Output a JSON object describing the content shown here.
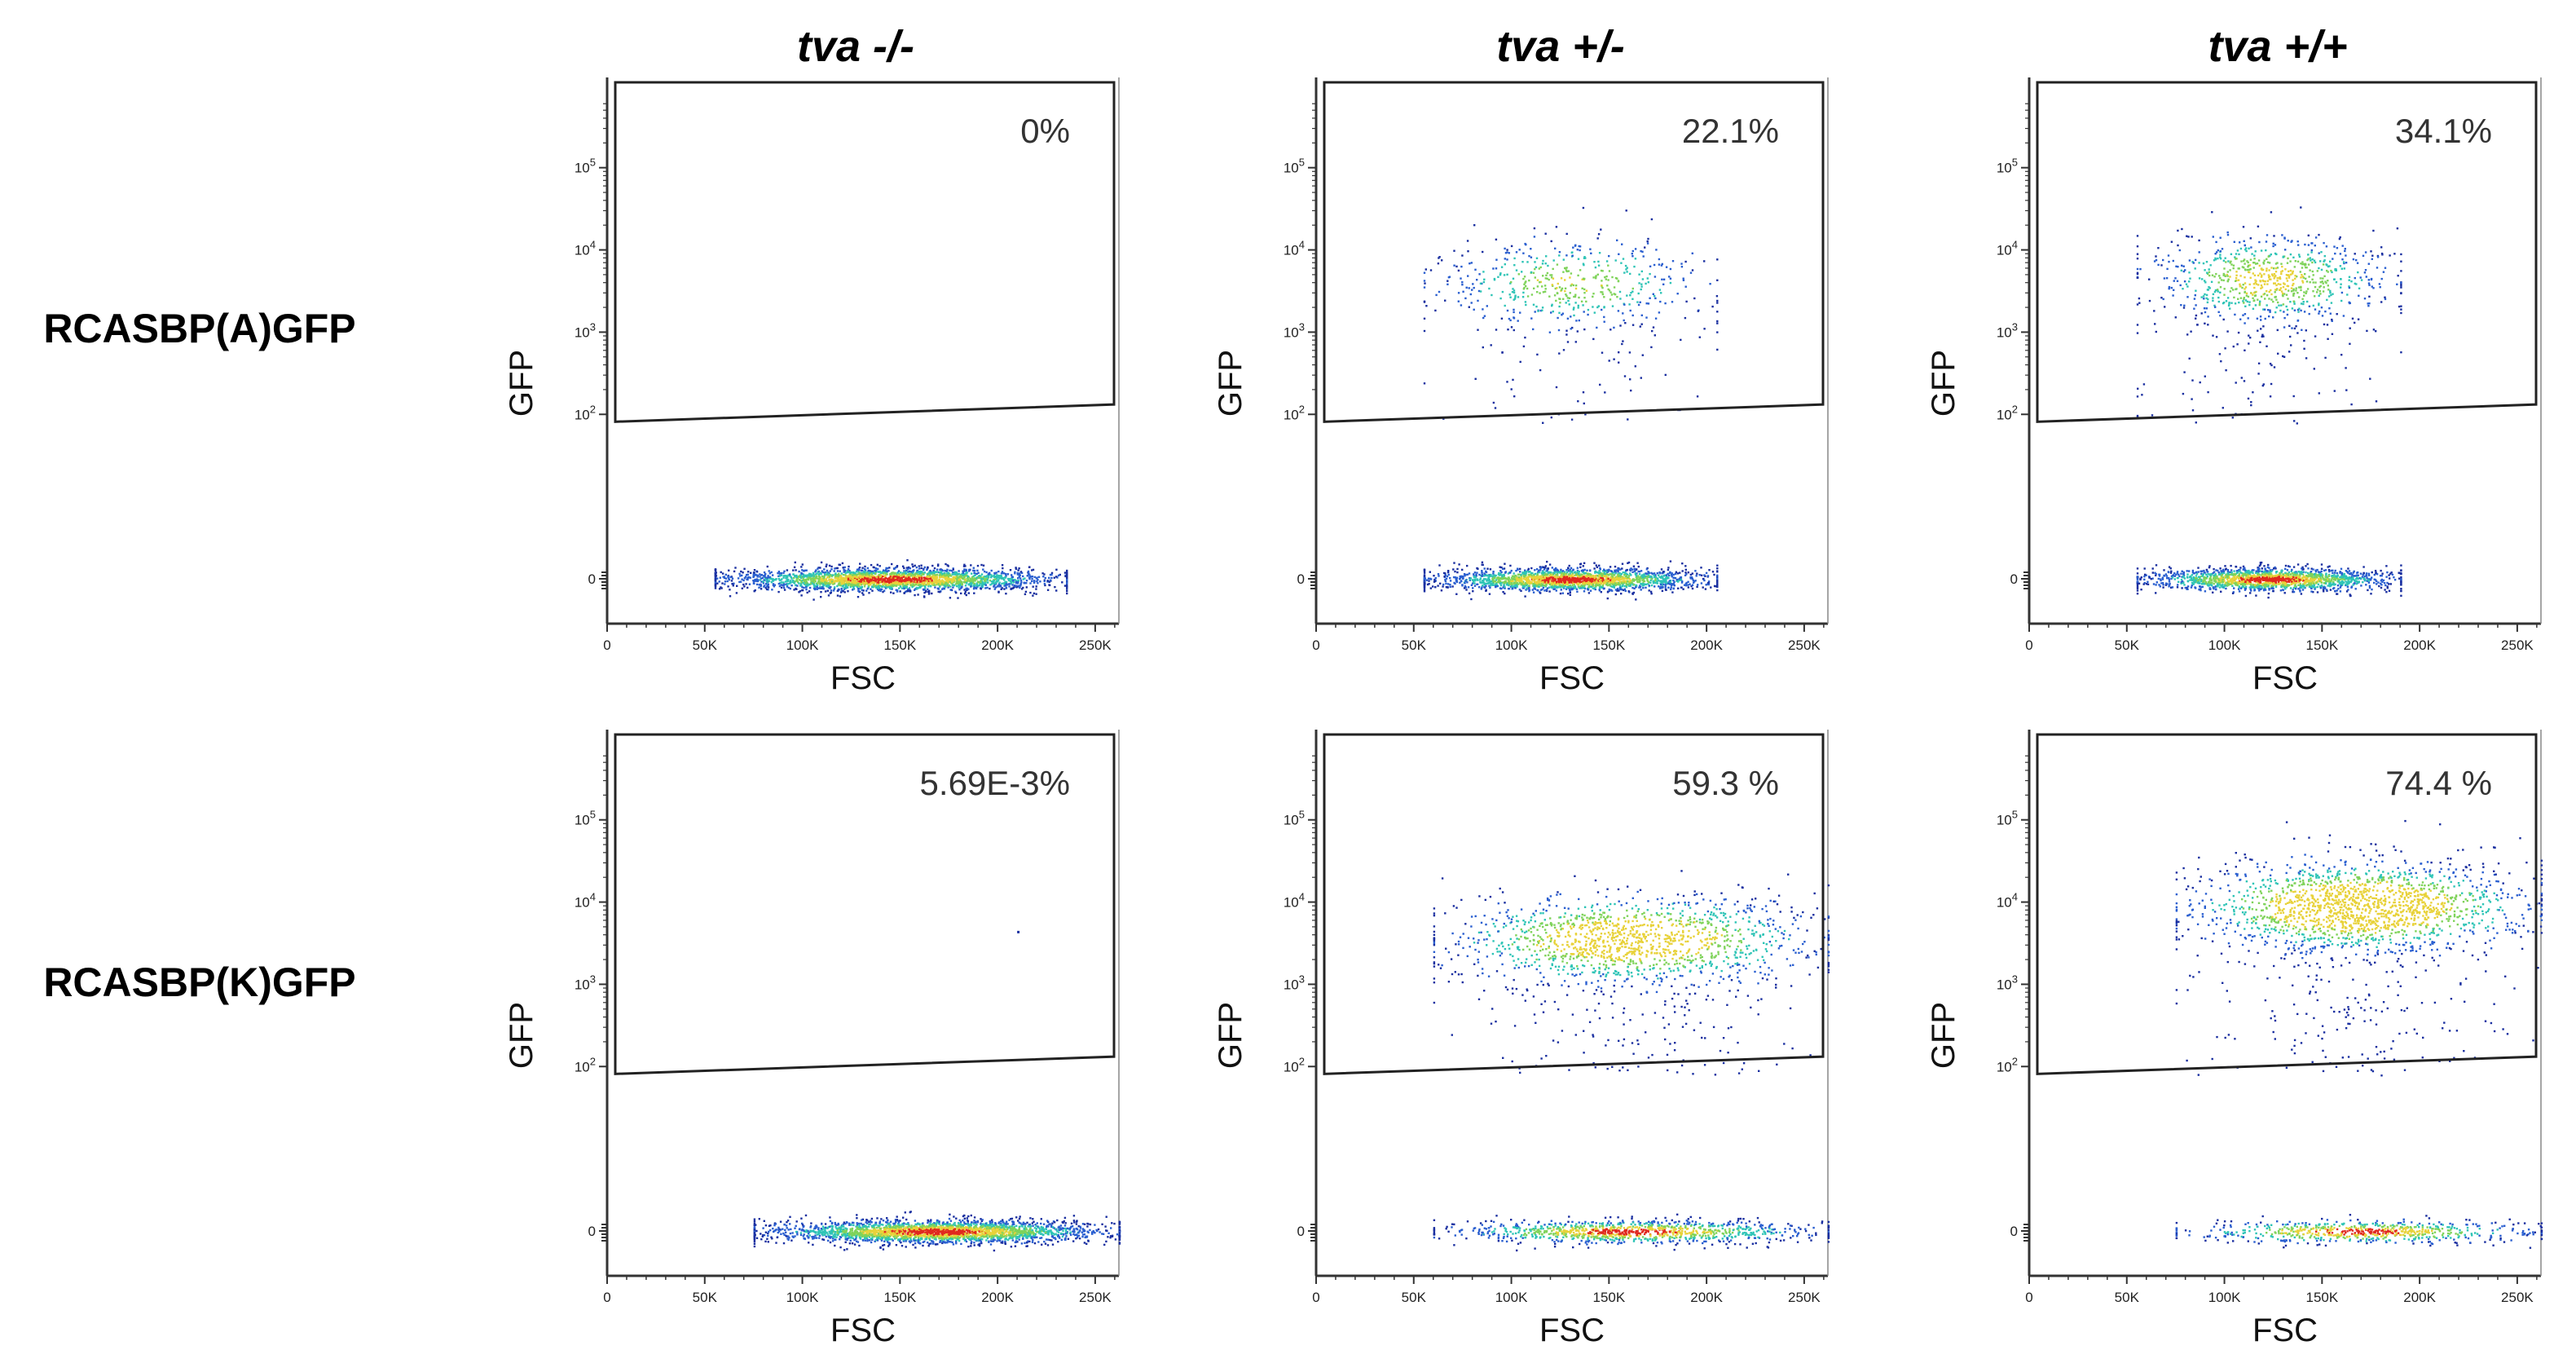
{
  "column_titles": [
    "tva -/-",
    "tva +/-",
    "tva +/+"
  ],
  "row_labels": [
    "RCASBP(A)GFP",
    "RCASBP(K)GFP"
  ],
  "colors": {
    "density_low": "#1a2fa0",
    "density_mid": "#2ec4b6",
    "density_high": "#e8d23a",
    "density_peak": "#e0281e",
    "axis": "#333333",
    "gate": "#222222"
  },
  "chart_data": [
    {
      "type": "scatter",
      "row": "RCASBP(A)GFP",
      "column": "tva -/-",
      "gate_percent": "0%",
      "xlabel": "FSC",
      "ylabel": "GFP",
      "x_ticks": [
        "0",
        "50K",
        "100K",
        "150K",
        "200K",
        "250K"
      ],
      "y_ticks": [
        "0",
        "10^2",
        "10^3",
        "10^4",
        "10^5"
      ],
      "xlim": [
        0,
        262144
      ],
      "ylim_log": [
        0,
        5.8
      ],
      "populations": [
        {
          "name": "GFP-negative",
          "x_range": [
            55000,
            235000
          ],
          "y_center_log": 0.0,
          "relative_count": 1.0
        }
      ],
      "sparse_events": []
    },
    {
      "type": "scatter",
      "row": "RCASBP(A)GFP",
      "column": "tva +/-",
      "gate_percent": "22.1%",
      "xlabel": "FSC",
      "ylabel": "GFP",
      "x_ticks": [
        "0",
        "50K",
        "100K",
        "150K",
        "200K",
        "250K"
      ],
      "y_ticks": [
        "0",
        "10^2",
        "10^3",
        "10^4",
        "10^5"
      ],
      "xlim": [
        0,
        262144
      ],
      "ylim_log": [
        0,
        5.8
      ],
      "populations": [
        {
          "name": "GFP-negative",
          "x_range": [
            55000,
            205000
          ],
          "y_center_log": 0.0,
          "relative_count": 0.78
        },
        {
          "name": "GFP-positive",
          "x_range": [
            55000,
            205000
          ],
          "y_center_log": 3.6,
          "relative_count": 0.22
        }
      ],
      "sparse_events": []
    },
    {
      "type": "scatter",
      "row": "RCASBP(A)GFP",
      "column": "tva +/+",
      "gate_percent": "34.1%",
      "xlabel": "FSC",
      "ylabel": "GFP",
      "x_ticks": [
        "0",
        "50K",
        "100K",
        "150K",
        "200K",
        "250K"
      ],
      "y_ticks": [
        "0",
        "10^2",
        "10^3",
        "10^4",
        "10^5"
      ],
      "xlim": [
        0,
        262144
      ],
      "ylim_log": [
        0,
        5.8
      ],
      "populations": [
        {
          "name": "GFP-negative",
          "x_range": [
            55000,
            190000
          ],
          "y_center_log": 0.0,
          "relative_count": 0.66
        },
        {
          "name": "GFP-positive",
          "x_range": [
            55000,
            190000
          ],
          "y_center_log": 3.65,
          "relative_count": 0.34
        }
      ],
      "sparse_events": []
    },
    {
      "type": "scatter",
      "row": "RCASBP(K)GFP",
      "column": "tva -/-",
      "gate_percent": "5.69E-3%",
      "xlabel": "FSC",
      "ylabel": "GFP",
      "x_ticks": [
        "0",
        "50K",
        "100K",
        "150K",
        "200K",
        "250K"
      ],
      "y_ticks": [
        "0",
        "10^2",
        "10^3",
        "10^4",
        "10^5"
      ],
      "xlim": [
        0,
        262144
      ],
      "ylim_log": [
        0,
        5.8
      ],
      "populations": [
        {
          "name": "GFP-negative",
          "x_range": [
            75000,
            262000
          ],
          "y_center_log": 0.0,
          "relative_count": 1.0
        }
      ],
      "sparse_events": [
        {
          "x": 210000,
          "y_log": 3.65
        }
      ]
    },
    {
      "type": "scatter",
      "row": "RCASBP(K)GFP",
      "column": "tva +/-",
      "gate_percent": "59.3 %",
      "xlabel": "FSC",
      "ylabel": "GFP",
      "x_ticks": [
        "0",
        "50K",
        "100K",
        "150K",
        "200K",
        "250K"
      ],
      "y_ticks": [
        "0",
        "10^2",
        "10^3",
        "10^4",
        "10^5"
      ],
      "xlim": [
        0,
        262144
      ],
      "ylim_log": [
        0,
        5.8
      ],
      "populations": [
        {
          "name": "GFP-negative",
          "x_range": [
            60000,
            262000
          ],
          "y_center_log": 0.0,
          "relative_count": 0.41
        },
        {
          "name": "GFP-positive",
          "x_range": [
            60000,
            262000
          ],
          "y_center_log": 3.55,
          "relative_count": 0.59
        }
      ],
      "sparse_events": []
    },
    {
      "type": "scatter",
      "row": "RCASBP(K)GFP",
      "column": "tva +/+",
      "gate_percent": "74.4 %",
      "xlabel": "FSC",
      "ylabel": "GFP",
      "x_ticks": [
        "0",
        "50K",
        "100K",
        "150K",
        "200K",
        "250K"
      ],
      "y_ticks": [
        "0",
        "10^2",
        "10^3",
        "10^4",
        "10^5"
      ],
      "xlim": [
        0,
        262144
      ],
      "ylim_log": [
        0,
        5.8
      ],
      "populations": [
        {
          "name": "GFP-negative",
          "x_range": [
            75000,
            262000
          ],
          "y_center_log": 0.0,
          "relative_count": 0.26
        },
        {
          "name": "GFP-positive",
          "x_range": [
            75000,
            262000
          ],
          "y_center_log": 3.95,
          "relative_count": 0.74
        }
      ],
      "sparse_events": []
    }
  ]
}
